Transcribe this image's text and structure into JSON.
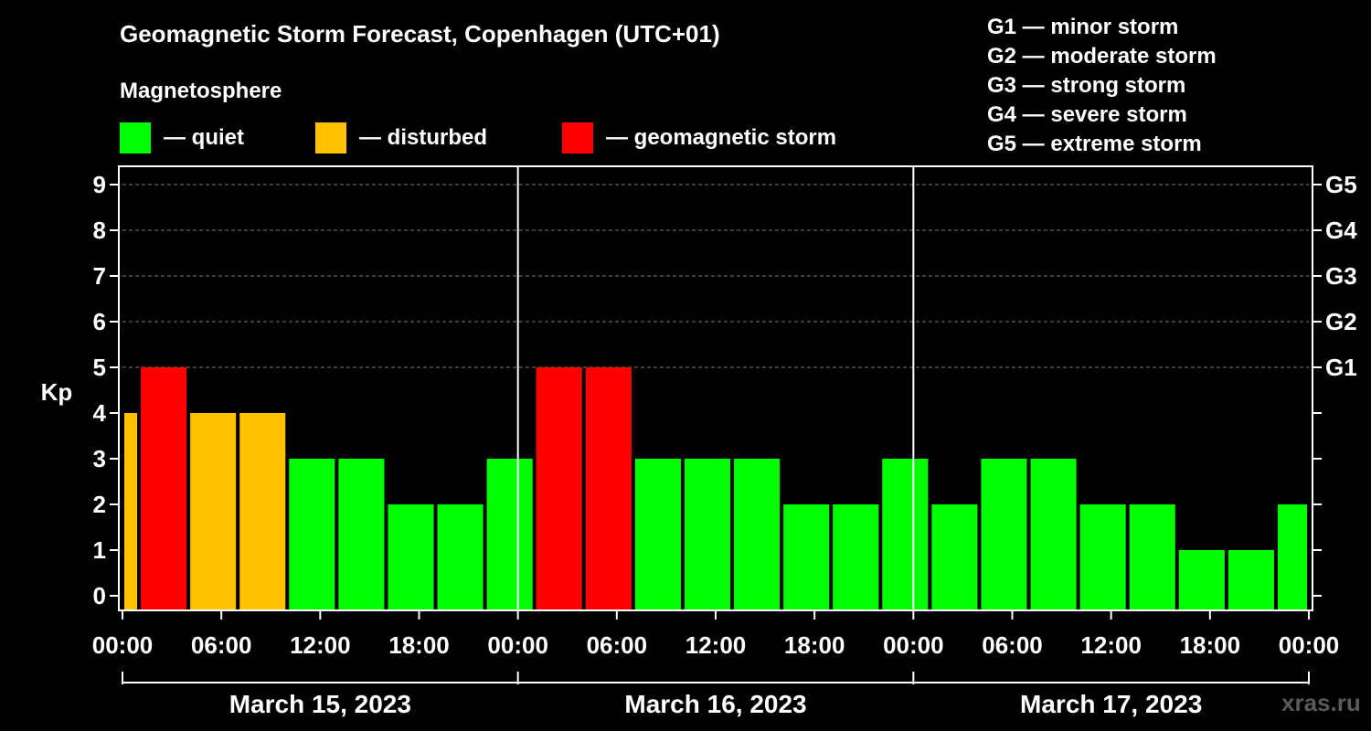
{
  "colors": {
    "quiet": "#00ff00",
    "disturbed": "#ffc000",
    "storm": "#ff0000",
    "grid": "#7a7a7a",
    "axis": "#ffffff",
    "watermark": "#5a5a5a"
  },
  "header": {
    "title": "Geomagnetic Storm Forecast, Copenhagen (UTC+01)",
    "magnetosphere_label": "Magnetosphere"
  },
  "legend": [
    {
      "label": "— quiet",
      "color": "#00ff00"
    },
    {
      "label": "— disturbed",
      "color": "#ffc000"
    },
    {
      "label": "— geomagnetic storm",
      "color": "#ff0000"
    }
  ],
  "g_scale": [
    "G1 — minor storm",
    "G2 — moderate storm",
    "G3 — strong storm",
    "G4 — severe storm",
    "G5 — extreme storm"
  ],
  "watermark": "xras.ru",
  "chart_data": {
    "type": "bar",
    "title": "Geomagnetic Storm Forecast, Copenhagen (UTC+01)",
    "ylabel": "Kp",
    "ylim": [
      0,
      9
    ],
    "y_ticks": [
      "0",
      "1",
      "2",
      "3",
      "4",
      "5",
      "6",
      "7",
      "8",
      "9"
    ],
    "right_ticks": [
      {
        "kp": 5,
        "label": "G1"
      },
      {
        "kp": 6,
        "label": "G2"
      },
      {
        "kp": 7,
        "label": "G3"
      },
      {
        "kp": 8,
        "label": "G4"
      },
      {
        "kp": 9,
        "label": "G5"
      }
    ],
    "x_range_hours": [
      0,
      72
    ],
    "x_ticks": [
      {
        "hour": 0,
        "label": "00:00"
      },
      {
        "hour": 6,
        "label": "06:00"
      },
      {
        "hour": 12,
        "label": "12:00"
      },
      {
        "hour": 18,
        "label": "18:00"
      },
      {
        "hour": 24,
        "label": "00:00"
      },
      {
        "hour": 30,
        "label": "06:00"
      },
      {
        "hour": 36,
        "label": "12:00"
      },
      {
        "hour": 42,
        "label": "18:00"
      },
      {
        "hour": 48,
        "label": "00:00"
      },
      {
        "hour": 54,
        "label": "06:00"
      },
      {
        "hour": 60,
        "label": "12:00"
      },
      {
        "hour": 66,
        "label": "18:00"
      },
      {
        "hour": 72,
        "label": "00:00"
      }
    ],
    "days": [
      {
        "label": "March 15, 2023",
        "start_hour": 0,
        "end_hour": 24
      },
      {
        "label": "March 16, 2023",
        "start_hour": 24,
        "end_hour": 48
      },
      {
        "label": "March 17, 2023",
        "start_hour": 48,
        "end_hour": 72
      }
    ],
    "bars": [
      {
        "start_hour": 0,
        "end_hour": 1,
        "kp": 4,
        "level": "disturbed"
      },
      {
        "start_hour": 1,
        "end_hour": 4,
        "kp": 5,
        "level": "storm"
      },
      {
        "start_hour": 4,
        "end_hour": 7,
        "kp": 4,
        "level": "disturbed"
      },
      {
        "start_hour": 7,
        "end_hour": 10,
        "kp": 4,
        "level": "disturbed"
      },
      {
        "start_hour": 10,
        "end_hour": 13,
        "kp": 3,
        "level": "quiet"
      },
      {
        "start_hour": 13,
        "end_hour": 16,
        "kp": 3,
        "level": "quiet"
      },
      {
        "start_hour": 16,
        "end_hour": 19,
        "kp": 2,
        "level": "quiet"
      },
      {
        "start_hour": 19,
        "end_hour": 22,
        "kp": 2,
        "level": "quiet"
      },
      {
        "start_hour": 22,
        "end_hour": 25,
        "kp": 3,
        "level": "quiet"
      },
      {
        "start_hour": 25,
        "end_hour": 28,
        "kp": 5,
        "level": "storm"
      },
      {
        "start_hour": 28,
        "end_hour": 31,
        "kp": 5,
        "level": "storm"
      },
      {
        "start_hour": 31,
        "end_hour": 34,
        "kp": 3,
        "level": "quiet"
      },
      {
        "start_hour": 34,
        "end_hour": 37,
        "kp": 3,
        "level": "quiet"
      },
      {
        "start_hour": 37,
        "end_hour": 40,
        "kp": 3,
        "level": "quiet"
      },
      {
        "start_hour": 40,
        "end_hour": 43,
        "kp": 2,
        "level": "quiet"
      },
      {
        "start_hour": 43,
        "end_hour": 46,
        "kp": 2,
        "level": "quiet"
      },
      {
        "start_hour": 46,
        "end_hour": 49,
        "kp": 3,
        "level": "quiet"
      },
      {
        "start_hour": 49,
        "end_hour": 52,
        "kp": 2,
        "level": "quiet"
      },
      {
        "start_hour": 52,
        "end_hour": 55,
        "kp": 3,
        "level": "quiet"
      },
      {
        "start_hour": 55,
        "end_hour": 58,
        "kp": 3,
        "level": "quiet"
      },
      {
        "start_hour": 58,
        "end_hour": 61,
        "kp": 2,
        "level": "quiet"
      },
      {
        "start_hour": 61,
        "end_hour": 64,
        "kp": 2,
        "level": "quiet"
      },
      {
        "start_hour": 64,
        "end_hour": 67,
        "kp": 1,
        "level": "quiet"
      },
      {
        "start_hour": 67,
        "end_hour": 70,
        "kp": 1,
        "level": "quiet"
      },
      {
        "start_hour": 70,
        "end_hour": 72,
        "kp": 2,
        "level": "quiet"
      }
    ]
  }
}
